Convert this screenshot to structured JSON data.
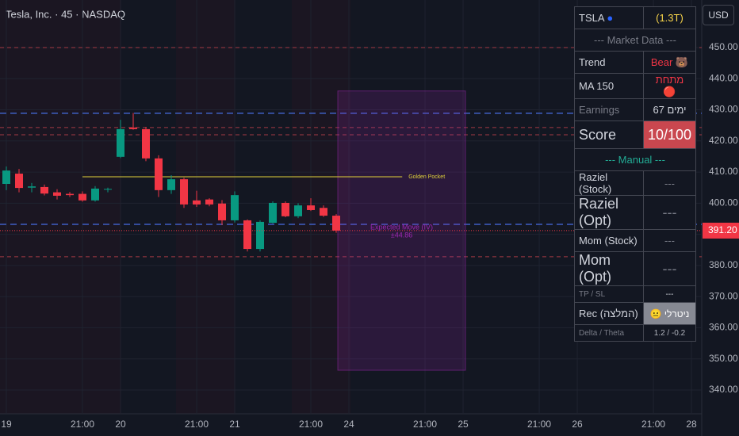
{
  "chart_data": {
    "type": "candlestick",
    "title": "Tesla, Inc. · 45 · NASDAQ",
    "currency": "USD",
    "x": [
      0,
      1,
      2,
      3,
      4,
      5,
      6,
      7,
      8,
      9,
      10,
      11,
      12,
      13,
      14,
      15,
      16,
      17,
      18,
      19,
      20,
      21,
      22,
      23,
      24,
      25,
      26
    ],
    "open": [
      406.2,
      409.5,
      405.0,
      405.2,
      403.5,
      403.0,
      403.0,
      400.9,
      404.4,
      414.9,
      424.3,
      423.8,
      414.4,
      404.2,
      407.7,
      400.9,
      401.2,
      399.9,
      394.5,
      394.5,
      385.3,
      393.7,
      400.1,
      395.8,
      399.3,
      398.5,
      396.0
    ],
    "high": [
      411.8,
      411.0,
      406.5,
      406.0,
      404.5,
      403.6,
      403.8,
      405.5,
      405.0,
      426.8,
      429.0,
      424.5,
      415.4,
      409.0,
      408.2,
      404.0,
      401.6,
      401.0,
      403.8,
      394.8,
      394.5,
      400.6,
      400.6,
      400.0,
      401.6,
      399.3,
      396.5
    ],
    "low": [
      404.2,
      403.5,
      403.5,
      402.5,
      401.2,
      402.0,
      400.5,
      400.5,
      403.5,
      414.5,
      423.6,
      413.5,
      402.0,
      403.0,
      398.5,
      398.8,
      399.0,
      393.0,
      393.8,
      384.5,
      384.5,
      393.5,
      395.5,
      395.2,
      397.5,
      395.6,
      390.5
    ],
    "close": [
      410.5,
      404.9,
      405.4,
      403.1,
      402.4,
      402.6,
      400.9,
      404.7,
      404.6,
      423.8,
      423.8,
      414.4,
      404.2,
      407.7,
      399.6,
      399.6,
      399.6,
      394.5,
      402.6,
      385.3,
      394.0,
      400.1,
      395.8,
      399.3,
      397.8,
      396.0,
      391.2
    ],
    "up_color": "#089981",
    "down_color": "#f23645",
    "xlim": [
      -0.5,
      54.81
    ],
    "ylim": [
      332.35,
      465.28
    ],
    "xticks": [
      {
        "value": 0,
        "label": "19"
      },
      {
        "value": 6,
        "label": "21:00"
      },
      {
        "value": 9,
        "label": "20"
      },
      {
        "value": 15,
        "label": "21:00"
      },
      {
        "value": 18,
        "label": "21"
      },
      {
        "value": 24,
        "label": "21:00"
      },
      {
        "value": 27,
        "label": "24"
      },
      {
        "value": 33,
        "label": "21:00"
      },
      {
        "value": 36,
        "label": "25"
      },
      {
        "value": 42,
        "label": "21:00"
      },
      {
        "value": 45,
        "label": "26"
      },
      {
        "value": 51,
        "label": "21:00"
      },
      {
        "value": 54,
        "label": "28"
      }
    ],
    "yticks": [
      {
        "value": 340,
        "label": "340.00"
      },
      {
        "value": 350,
        "label": "350.00"
      },
      {
        "value": 360,
        "label": "360.00"
      },
      {
        "value": 370,
        "label": "370.00"
      },
      {
        "value": 380,
        "label": "380.00"
      },
      {
        "value": 390,
        "label": "390.00"
      },
      {
        "value": 400,
        "label": "400.00"
      },
      {
        "value": 410,
        "label": "410.00"
      },
      {
        "value": 420,
        "label": "420.00"
      },
      {
        "value": 430,
        "label": "430.00"
      },
      {
        "value": 440,
        "label": "440.00"
      },
      {
        "value": 450,
        "label": "450.00"
      }
    ],
    "grid": true,
    "last_price": {
      "value": 391.2,
      "label": "391.20"
    },
    "red_levels": [
      450,
      424.3,
      422.0,
      382.8
    ],
    "blue_levels": [
      428.9,
      393.2
    ],
    "annotations": [
      {
        "text": "Golden Pocket",
        "value": 408.5
      }
    ],
    "expected_move": {
      "text": "Expected Move (IV)",
      "value": 44.86,
      "value_label": "±44.86"
    }
  },
  "panel": {
    "rows": [
      [
        "TSLA",
        "(1.3T)"
      ],
      [
        "--- Market Data ---"
      ],
      [
        "Trend",
        "Bear 🐻"
      ],
      [
        "MA 150",
        "מתחת 🔴"
      ],
      [
        "Earnings",
        "67 ימים"
      ],
      [
        "Score",
        "10/100"
      ],
      [
        "--- Manual ---"
      ],
      [
        "Raziel (Stock)",
        "---"
      ],
      [
        "Raziel (Opt)",
        "---"
      ],
      [
        "Mom (Stock)",
        "---"
      ],
      [
        "Mom (Opt)",
        "---"
      ],
      [
        "TP / SL",
        "---"
      ],
      [
        "Rec (המלצה)",
        "😐 ניטרלי"
      ],
      [
        "Delta / Theta",
        "1.2 / -0.2"
      ]
    ]
  }
}
